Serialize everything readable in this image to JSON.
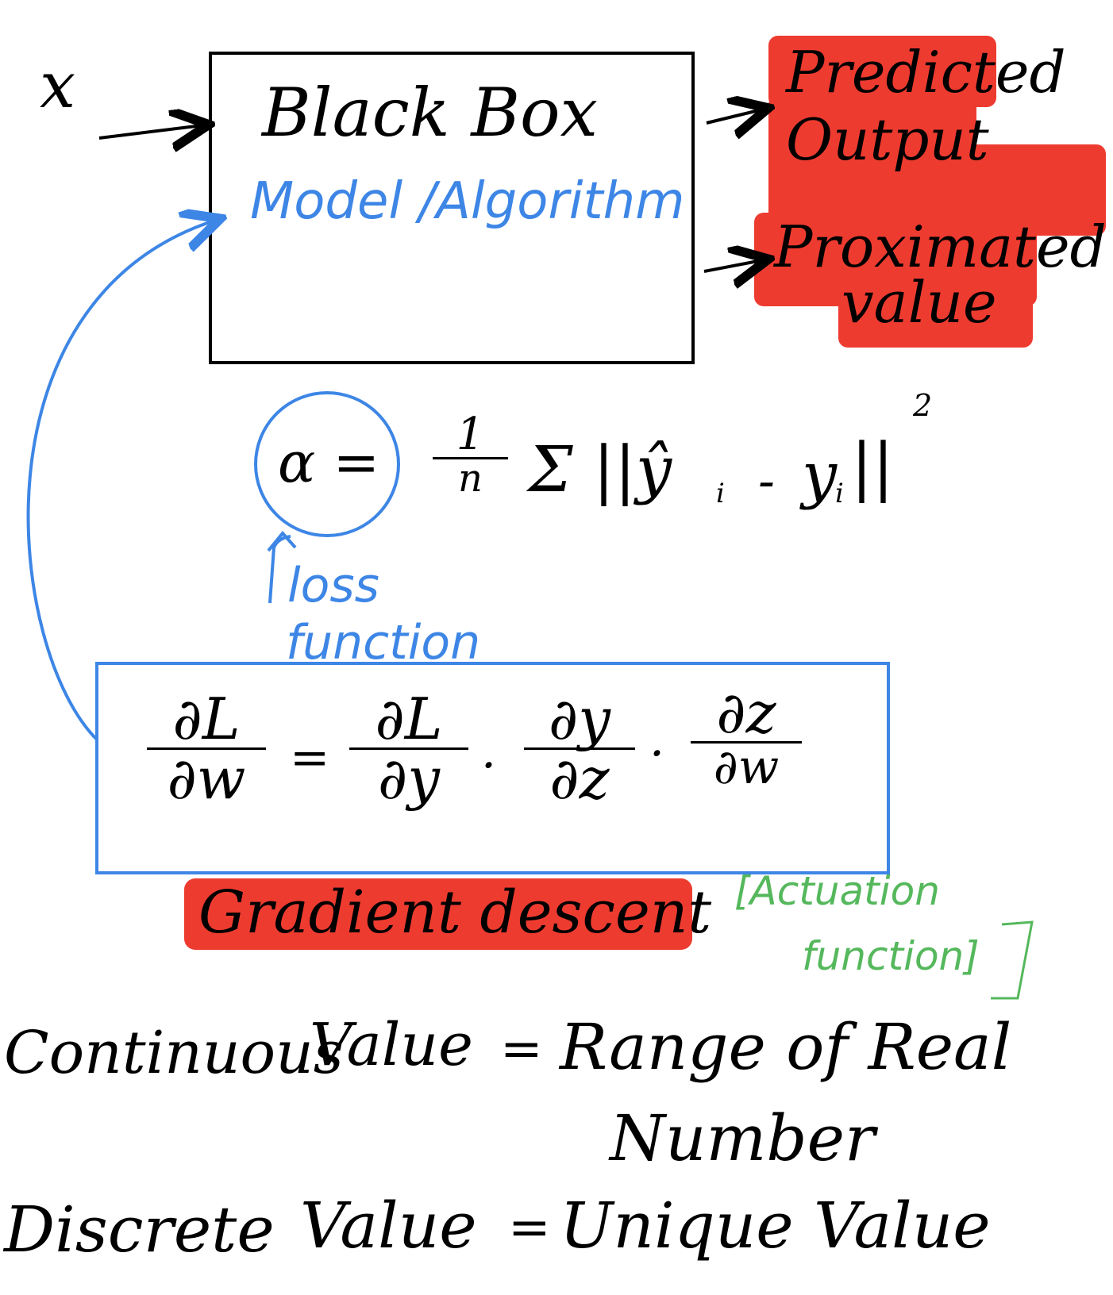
{
  "colors": {
    "ink": "#000000",
    "blue": "#3d86e6",
    "highlight": "#ee3b30",
    "green": "#55b85c"
  },
  "input_label": "x",
  "black_box": {
    "title": "Black Box",
    "subtitle": "Model /Algorithm"
  },
  "outputs": {
    "predicted_line1": "Predicted",
    "predicted_line2": "Output",
    "proximated_line1": "Proximated",
    "proximated_line2": "value"
  },
  "loss": {
    "symbol": "α =",
    "frac_num": "1",
    "frac_den": "n",
    "expr": "Σ ||ŷ",
    "sub_i1": "i",
    "minus": "-",
    "y": "y",
    "sub_i2": "i",
    "close": "||",
    "power": "2",
    "label_line1": "loss",
    "label_line2": "function"
  },
  "gradient": {
    "lhs_num": "∂L",
    "lhs_den": "∂w",
    "equals": "=",
    "t1_num": "∂L",
    "t1_den": "∂y",
    "dot": "·",
    "t2_num": "∂y",
    "t2_den": "∂z",
    "t3_num": "∂z",
    "t3_den": "∂w",
    "label": "Gradient descent"
  },
  "activation": {
    "line1": "[Actuation",
    "line2": "function]"
  },
  "definitions": {
    "continuous_term": "Continuous",
    "continuous_value": "Value",
    "continuous_eq": "=",
    "continuous_def1": "Range of Real",
    "continuous_def2": "Number",
    "discrete_term": "Discrete",
    "discrete_value": "Value",
    "discrete_eq": "=",
    "discrete_def": "Unique Value"
  }
}
